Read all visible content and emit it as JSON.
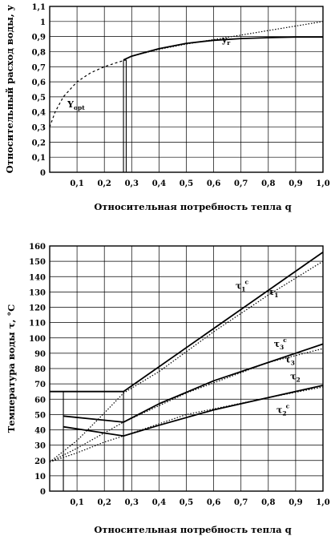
{
  "chart_data": [
    {
      "type": "line",
      "title": "",
      "xlabel": "Относительная потребность тепла q",
      "ylabel": "Относительный расход воды, y",
      "xlim": [
        0,
        1.0
      ],
      "ylim": [
        0,
        1.1
      ],
      "x_ticks": [
        "0,1",
        "0,2",
        "0,3",
        "0,4",
        "0,5",
        "0,6",
        "0,7",
        "0,8",
        "0,9",
        "1,0"
      ],
      "y_ticks": [
        "0",
        "0,1",
        "0,2",
        "0,3",
        "0,4",
        "0,5",
        "0,6",
        "0,7",
        "0,8",
        "0,9",
        "1",
        "1,1"
      ],
      "grid": true,
      "series": [
        {
          "name": "yopt",
          "style": "dashed",
          "x": [
            0.0,
            0.02,
            0.05,
            0.1,
            0.15,
            0.2,
            0.25,
            0.28
          ],
          "y": [
            0.3,
            0.4,
            0.5,
            0.6,
            0.66,
            0.7,
            0.73,
            0.745
          ]
        },
        {
          "name": "yr",
          "style": "solid",
          "x": [
            0.27,
            0.3,
            0.35,
            0.4,
            0.5,
            0.6,
            0.7,
            0.8,
            0.9,
            1.0
          ],
          "y": [
            0.745,
            0.77,
            0.795,
            0.82,
            0.855,
            0.875,
            0.887,
            0.893,
            0.897,
            0.897
          ]
        },
        {
          "name": "",
          "style": "dotted",
          "x": [
            0.3,
            0.4,
            0.5,
            0.6,
            0.7,
            0.8,
            0.9,
            1.0
          ],
          "y": [
            0.77,
            0.815,
            0.85,
            0.88,
            0.91,
            0.94,
            0.97,
            1.0
          ]
        }
      ],
      "vlines": [
        0.27,
        0.28
      ],
      "annotations": [
        {
          "text": "Y",
          "sub": "opt",
          "series": "yopt"
        },
        {
          "text": "y",
          "sub": "r",
          "series": "yr"
        }
      ]
    },
    {
      "type": "line",
      "title": "",
      "xlabel": "Относительная потребность тепла q",
      "ylabel": "Температура воды τ, °C",
      "xlim": [
        0,
        1.0
      ],
      "ylim": [
        0,
        160
      ],
      "x_ticks": [
        "0,1",
        "0,2",
        "0,3",
        "0,4",
        "0,5",
        "0,6",
        "0,7",
        "0,8",
        "0,9",
        "1,0"
      ],
      "y_ticks": [
        "0",
        "10",
        "20",
        "30",
        "40",
        "50",
        "60",
        "70",
        "80",
        "90",
        "100",
        "110",
        "120",
        "130",
        "140",
        "150",
        "160"
      ],
      "grid": true,
      "series": [
        {
          "name": "τ1c",
          "style": "solid",
          "x": [
            0.27,
            1.0
          ],
          "y": [
            65,
            156
          ]
        },
        {
          "name": "τ1",
          "style": "dotted",
          "x": [
            0.0,
            0.1,
            0.2,
            0.27,
            0.4,
            0.6,
            0.8,
            1.0
          ],
          "y": [
            19,
            33,
            51,
            64,
            78,
            104,
            128,
            150
          ]
        },
        {
          "name": "τ3c",
          "style": "solid",
          "x": [
            0.27,
            0.4,
            0.6,
            0.8,
            1.0
          ],
          "y": [
            45,
            57,
            72,
            84,
            96
          ]
        },
        {
          "name": "τ3",
          "style": "dotted",
          "x": [
            0.0,
            0.1,
            0.27,
            0.5,
            0.8,
            1.0
          ],
          "y": [
            19,
            28,
            45,
            64,
            84,
            93
          ]
        },
        {
          "name": "τ2",
          "style": "dotted",
          "x": [
            0.0,
            0.1,
            0.2,
            0.27,
            0.5,
            0.8,
            1.0
          ],
          "y": [
            19,
            25,
            32,
            36,
            50,
            61,
            68
          ]
        },
        {
          "name": "τ2c",
          "style": "solid",
          "x": [
            0.27,
            0.4,
            0.6,
            0.8,
            1.0
          ],
          "y": [
            36,
            43,
            53,
            61,
            69
          ]
        },
        {
          "name": "",
          "style": "solid",
          "x": [
            0.0,
            0.27
          ],
          "y": [
            65,
            65
          ]
        },
        {
          "name": "",
          "style": "solid",
          "x": [
            0.05,
            0.27
          ],
          "y": [
            49,
            45
          ]
        },
        {
          "name": "",
          "style": "solid",
          "x": [
            0.05,
            0.27
          ],
          "y": [
            42,
            36
          ]
        }
      ],
      "vlines": [
        0.05,
        0.27
      ],
      "annotations": [
        {
          "text": "τ",
          "sub": "1",
          "sup": "c",
          "series": "τ1c"
        },
        {
          "text": "τ",
          "sub": "1",
          "series": "τ1"
        },
        {
          "text": "τ",
          "sub": "3",
          "sup": "c",
          "series": "τ3c"
        },
        {
          "text": "τ",
          "sub": "3",
          "series": "τ3"
        },
        {
          "text": "τ",
          "sub": "2",
          "series": "τ2"
        },
        {
          "text": "τ",
          "sub": "2",
          "sup": "c",
          "series": "τ2c"
        }
      ]
    }
  ]
}
